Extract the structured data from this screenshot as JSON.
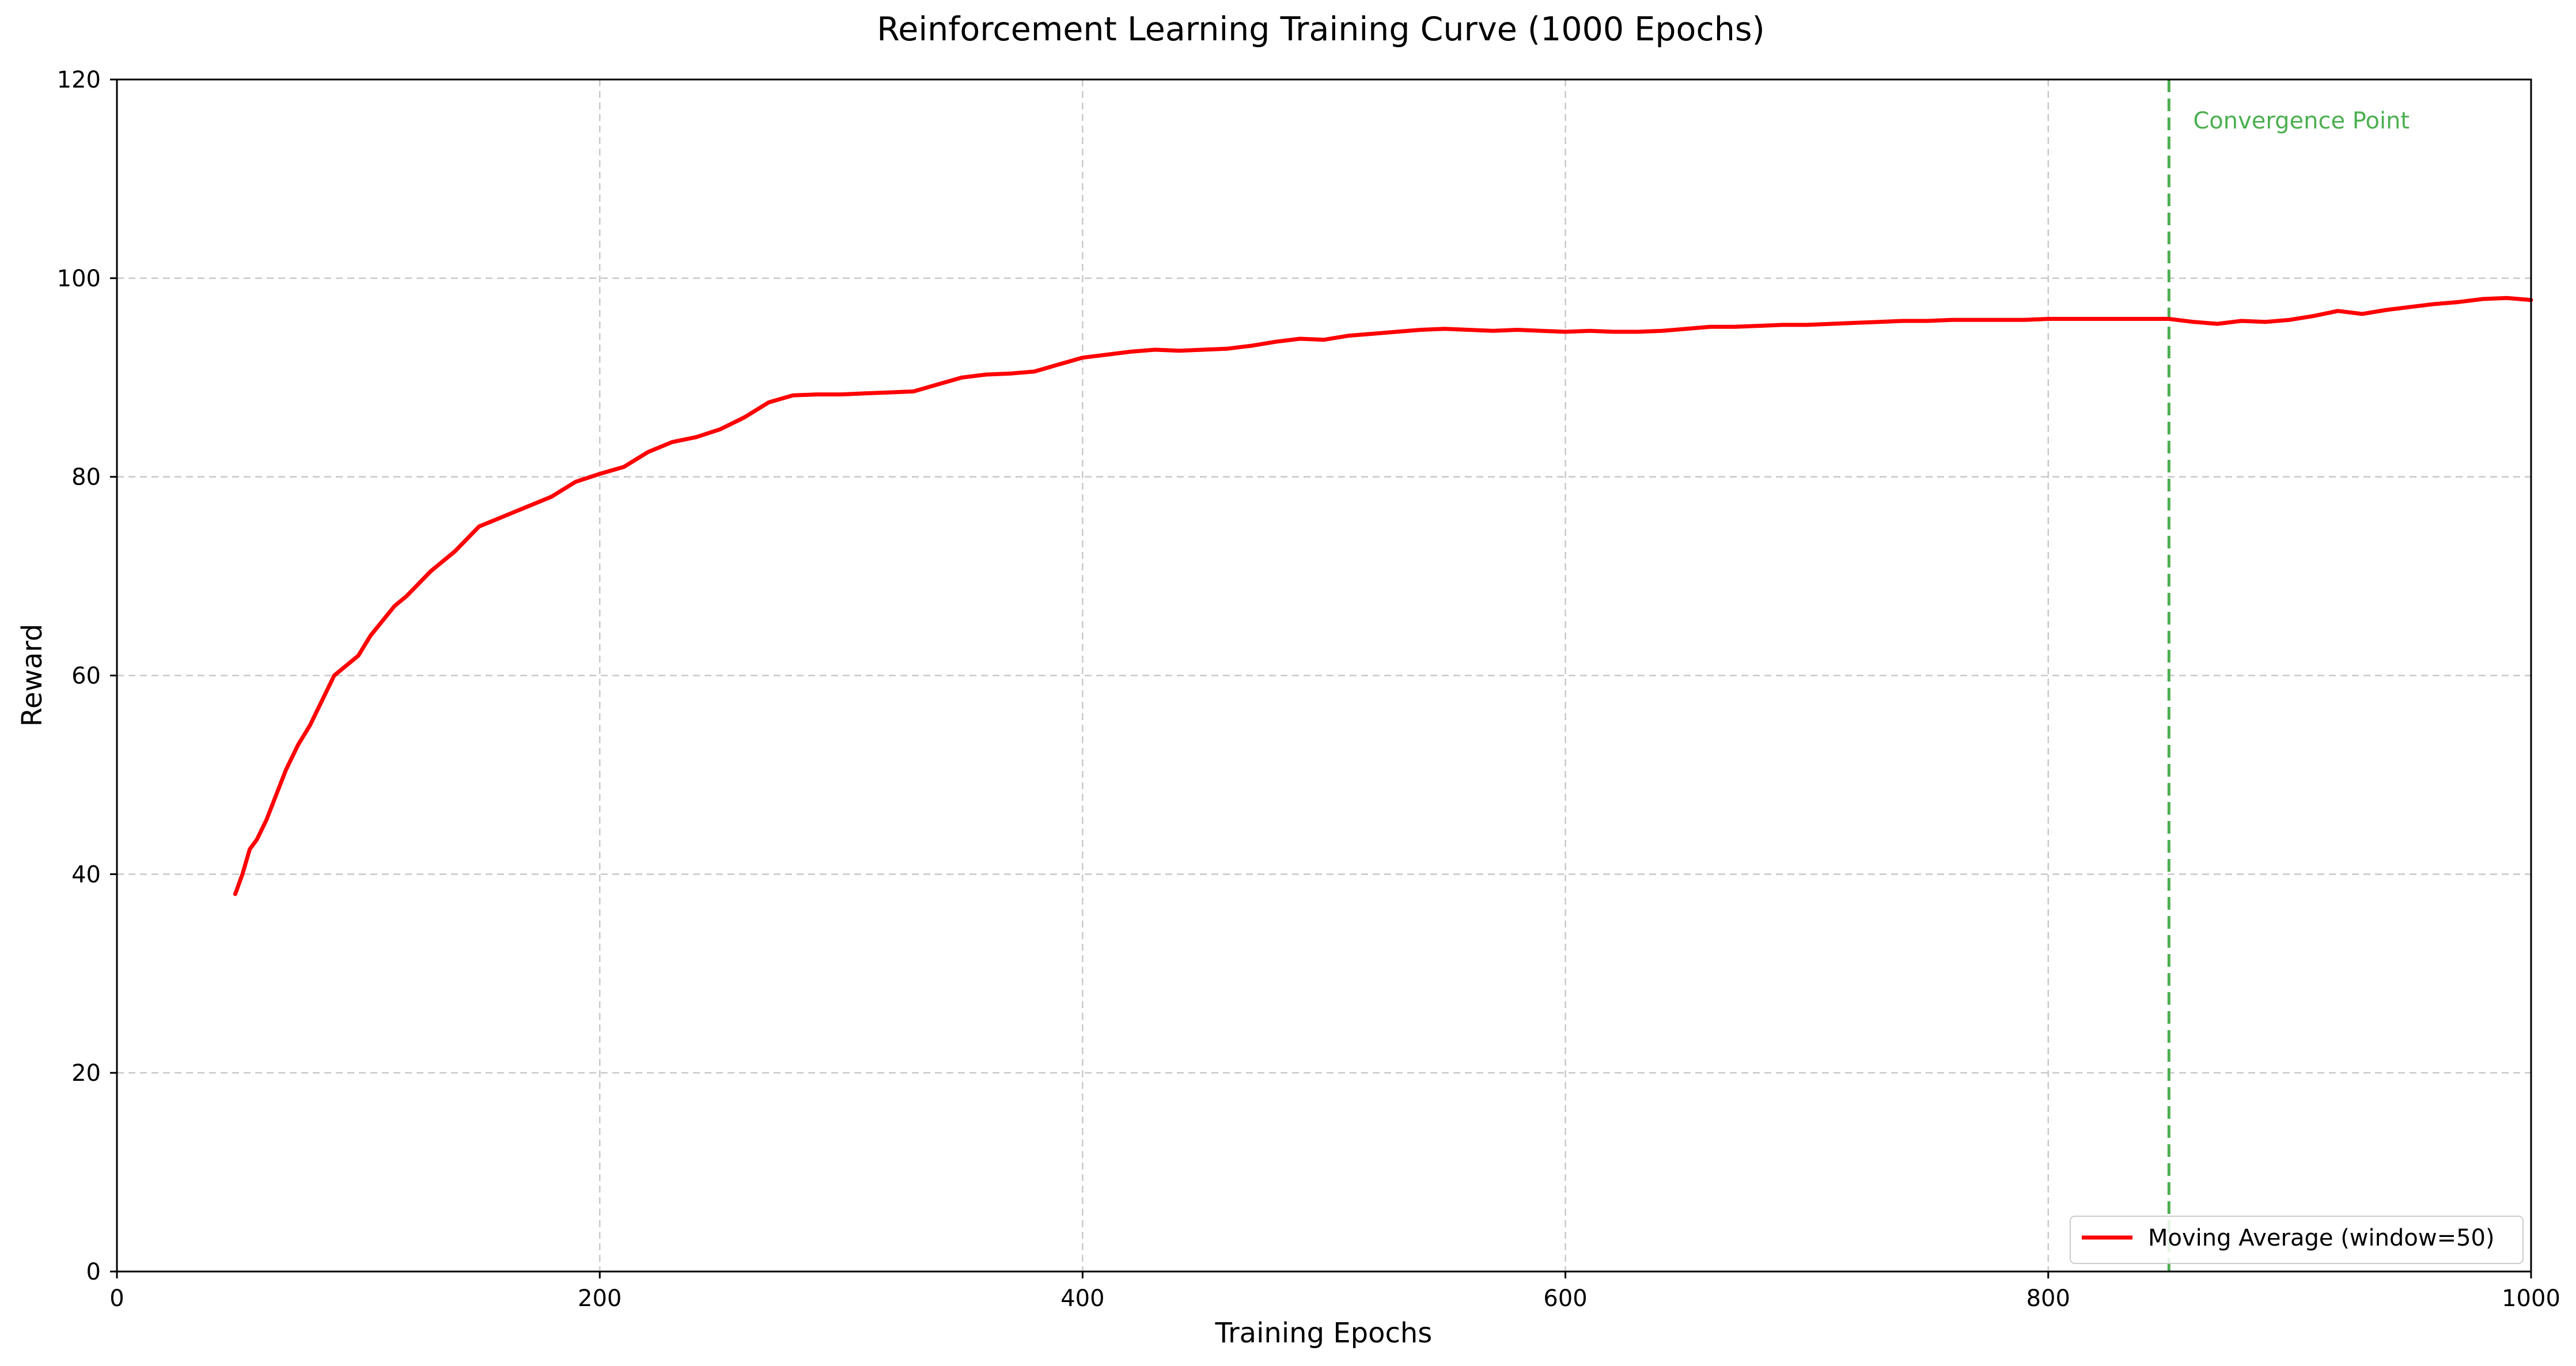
{
  "colors": {
    "series": "#ff0000",
    "convergence": "#4caf50",
    "grid": "#c8c8c8",
    "axis": "#000000",
    "background": "#ffffff"
  },
  "chart_data": {
    "type": "line",
    "title": "Reinforcement Learning Training Curve (1000 Epochs)",
    "xlabel": "Training Epochs",
    "ylabel": "Reward",
    "xlim": [
      0,
      1000
    ],
    "ylim": [
      0,
      120
    ],
    "xticks": [
      0,
      200,
      400,
      600,
      800,
      1000
    ],
    "yticks": [
      0,
      20,
      40,
      60,
      80,
      100,
      120
    ],
    "grid": true,
    "legend_position": "lower-right",
    "series": [
      {
        "name": "Moving Average (window=50)",
        "x": [
          49,
          52,
          55,
          58,
          62,
          66,
          70,
          75,
          80,
          85,
          90,
          95,
          100,
          105,
          110,
          115,
          120,
          130,
          140,
          150,
          160,
          170,
          180,
          190,
          200,
          210,
          220,
          230,
          240,
          250,
          260,
          270,
          280,
          290,
          300,
          310,
          320,
          330,
          340,
          350,
          360,
          370,
          380,
          390,
          400,
          410,
          420,
          430,
          440,
          450,
          460,
          470,
          480,
          490,
          500,
          510,
          520,
          530,
          540,
          550,
          560,
          570,
          580,
          590,
          600,
          610,
          620,
          630,
          640,
          650,
          660,
          670,
          680,
          690,
          700,
          710,
          720,
          730,
          740,
          750,
          760,
          770,
          780,
          790,
          800,
          810,
          820,
          830,
          840,
          850,
          860,
          870,
          880,
          890,
          900,
          910,
          920,
          930,
          940,
          950,
          960,
          970,
          980,
          990,
          1000
        ],
        "values": [
          38,
          40,
          42.5,
          43.5,
          45.5,
          48,
          50.5,
          53,
          55,
          57.5,
          60,
          61,
          62,
          64,
          65.5,
          67,
          68,
          70.5,
          72.5,
          75,
          76,
          77,
          78,
          79.5,
          80.3,
          81,
          82.5,
          83.5,
          84,
          84.8,
          86,
          87.5,
          88.2,
          88.3,
          88.3,
          88.4,
          88.5,
          88.6,
          89.3,
          90,
          90.3,
          90.4,
          90.6,
          91.3,
          92,
          92.3,
          92.6,
          92.8,
          92.7,
          92.8,
          92.9,
          93.2,
          93.6,
          93.9,
          93.8,
          94.2,
          94.4,
          94.6,
          94.8,
          94.9,
          94.8,
          94.7,
          94.8,
          94.7,
          94.6,
          94.7,
          94.6,
          94.6,
          94.7,
          94.9,
          95.1,
          95.1,
          95.2,
          95.3,
          95.3,
          95.4,
          95.5,
          95.6,
          95.7,
          95.7,
          95.8,
          95.8,
          95.8,
          95.8,
          95.9,
          95.9,
          95.9,
          95.9,
          95.9,
          95.9,
          95.6,
          95.4,
          95.7,
          95.6,
          95.8,
          96.2,
          96.7,
          96.4,
          96.8,
          97.1,
          97.4,
          97.6,
          97.9,
          98.0,
          97.8
        ]
      }
    ],
    "annotations": [
      {
        "type": "vline",
        "x": 850,
        "style": "dashed",
        "label": "Convergence Point"
      }
    ]
  }
}
